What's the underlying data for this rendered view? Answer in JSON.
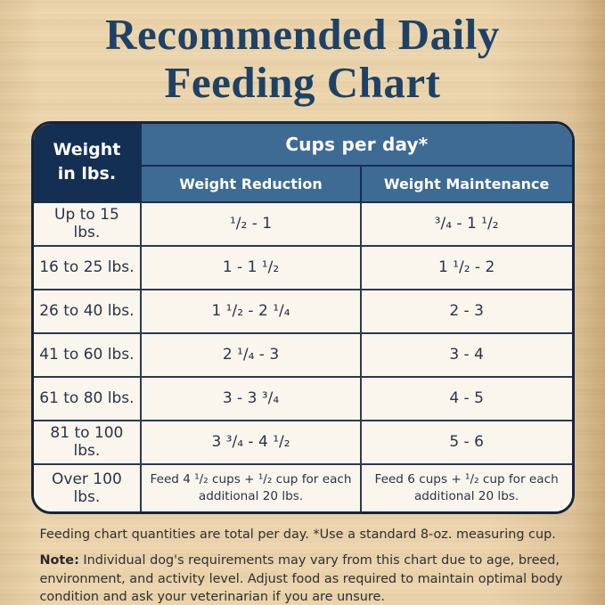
{
  "title": {
    "line1": "Recommended Daily",
    "line2": "Feeding Chart"
  },
  "chart_data": {
    "type": "table",
    "title": "Recommended Daily Feeding Chart",
    "corner_header": {
      "line1": "Weight",
      "line2": "in lbs."
    },
    "group_header": "Cups per day*",
    "columns": [
      "Weight Reduction",
      "Weight Maintenance"
    ],
    "rows": [
      {
        "weight": "Up to 15 lbs.",
        "weight_reduction": "¹/₂ - 1",
        "weight_maintenance": "³/₄ - 1 ¹/₂"
      },
      {
        "weight": "16 to 25 lbs.",
        "weight_reduction": "1 - 1 ¹/₂",
        "weight_maintenance": "1 ¹/₂ - 2"
      },
      {
        "weight": "26 to 40 lbs.",
        "weight_reduction": "1 ¹/₂ - 2 ¹/₄",
        "weight_maintenance": "2 - 3"
      },
      {
        "weight": "41 to 60 lbs.",
        "weight_reduction": "2 ¹/₄ - 3",
        "weight_maintenance": "3 - 4"
      },
      {
        "weight": "61 to 80 lbs.",
        "weight_reduction": "3 - 3 ³/₄",
        "weight_maintenance": "4 - 5"
      },
      {
        "weight": "81 to 100 lbs.",
        "weight_reduction": "3 ³/₄ - 4 ¹/₂",
        "weight_maintenance": "5 - 6"
      },
      {
        "weight": "Over 100 lbs.",
        "weight_reduction": "Feed 4 ¹/₂ cups + ¹/₂ cup for each additional 20 lbs.",
        "weight_maintenance": "Feed 6 cups + ¹/₂ cup for each additional 20 lbs."
      }
    ]
  },
  "footnotes": {
    "quantities": "Feeding chart quantities are total per day. *Use a standard 8-oz. measuring cup.",
    "note_label": "Note:",
    "note_text": "Individual dog's requirements may vary from this chart due to age, breed, environment, and activity level. Adjust food as required to maintain optimal body condition and ask your veterinarian if you are unsure."
  },
  "colors": {
    "title_navy": "#1e4266",
    "header_dark_navy": "#132f54",
    "header_blue": "#3e6b94",
    "row_background": "#faf6ee",
    "border_navy": "#2b3950",
    "body_text": "#2b3347",
    "wood_background": "#e9d1a7"
  }
}
